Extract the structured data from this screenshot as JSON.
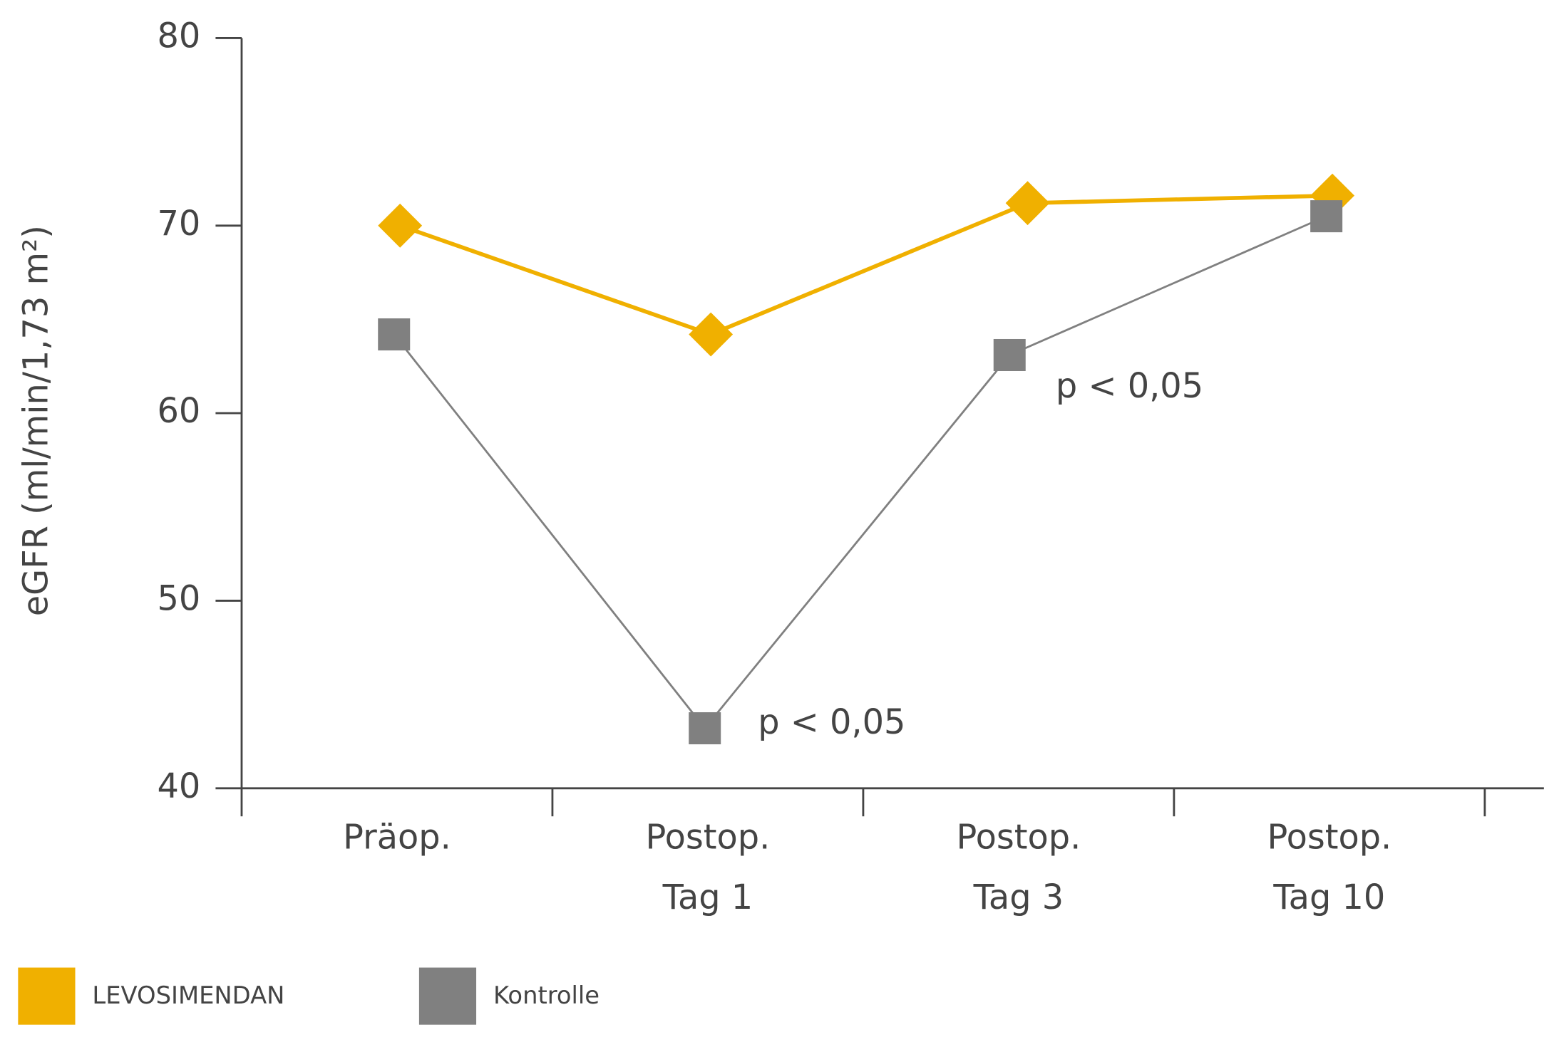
{
  "chart_data": {
    "type": "line",
    "y_label": "eGFR (ml/min/1,73 m²)",
    "categories": [
      [
        "Präop."
      ],
      [
        "Postop.",
        "Tag 1"
      ],
      [
        "Postop.",
        "Tag 3"
      ],
      [
        "Postop.",
        "Tag 10"
      ]
    ],
    "series": [
      {
        "name": "LEVOSIMENDAN",
        "color": "#f0b000",
        "marker": "diamond",
        "values": [
          70,
          64.2,
          71.2,
          71.6
        ]
      },
      {
        "name": "Kontrolle",
        "color": "#808080",
        "marker": "square",
        "values": [
          64.2,
          43.2,
          63.1,
          70.5
        ]
      }
    ],
    "annotations": [
      "p < 0,05",
      "p < 0,05"
    ],
    "ylim": [
      40,
      80
    ],
    "yticks": [
      40,
      50,
      60,
      70,
      80
    ],
    "grid": false
  }
}
